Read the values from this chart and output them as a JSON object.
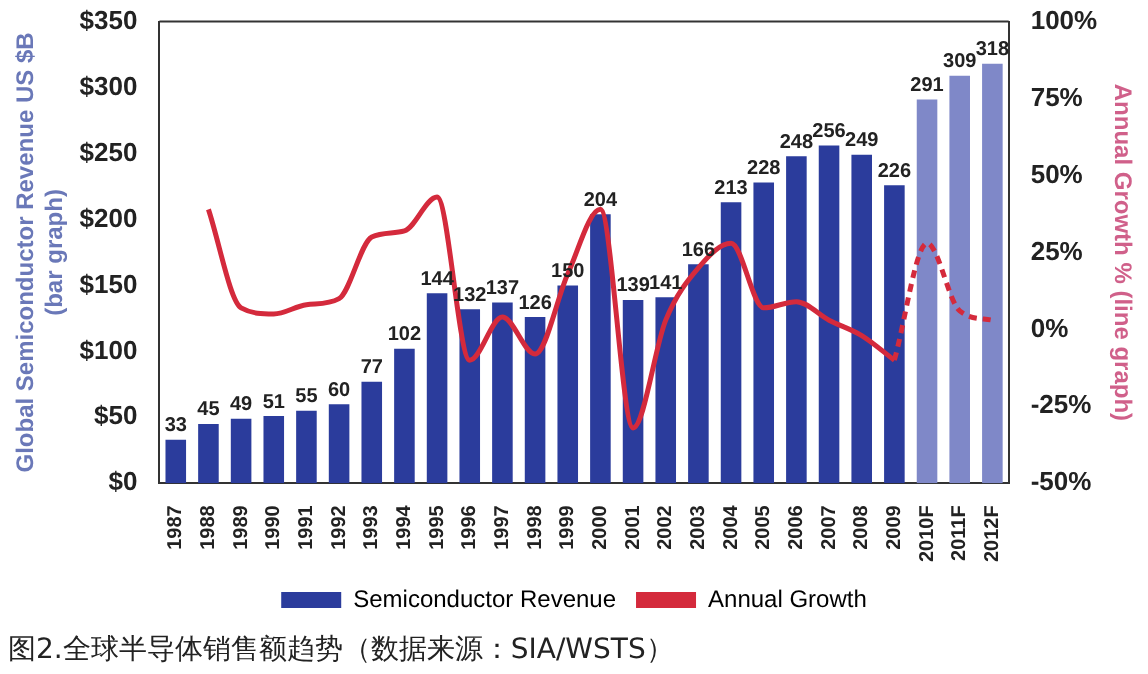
{
  "chart_data": {
    "type": "bar",
    "categories": [
      "1987",
      "1988",
      "1989",
      "1990",
      "1991",
      "1992",
      "1993",
      "1994",
      "1995",
      "1996",
      "1997",
      "1998",
      "1999",
      "2000",
      "2001",
      "2002",
      "2003",
      "2004",
      "2005",
      "2006",
      "2007",
      "2008",
      "2009",
      "2010F",
      "2011F",
      "2012F"
    ],
    "series": [
      {
        "name": "Semiconductor Revenue",
        "color": "#2b3c9c",
        "value_labels": [
          "33",
          "45",
          "49",
          "51",
          "55",
          "60",
          "77",
          "102",
          "144",
          "132",
          "137",
          "126",
          "150",
          "204",
          "139",
          "141",
          "166",
          "213",
          "228",
          "248",
          "256",
          "249",
          "226",
          "291",
          "309",
          "318"
        ],
        "colors": [
          "#2b3c9c",
          "#2b3c9c",
          "#2b3c9c",
          "#2b3c9c",
          "#2b3c9c",
          "#2b3c9c",
          "#2b3c9c",
          "#2b3c9c",
          "#2b3c9c",
          "#2b3c9c",
          "#2b3c9c",
          "#2b3c9c",
          "#2b3c9c",
          "#2b3c9c",
          "#2b3c9c",
          "#2b3c9c",
          "#2b3c9c",
          "#2b3c9c",
          "#2b3c9c",
          "#2b3c9c",
          "#2b3c9c",
          "#2b3c9c",
          "#2b3c9c",
          "#7f88c8",
          "#7f88c8",
          "#7f88c8"
        ],
        "values": [
          33,
          45,
          49,
          51,
          55,
          60,
          77,
          102,
          144,
          132,
          137,
          126,
          150,
          204,
          139,
          141,
          166,
          213,
          228,
          248,
          256,
          249,
          226,
          291,
          309,
          318
        ]
      },
      {
        "name": "Annual Growth",
        "type": "line",
        "axis": "y2",
        "color": "#d42a3c",
        "line_style": "solid",
        "values": [
          null,
          39,
          7,
          5,
          8,
          10,
          30,
          32,
          43,
          -10,
          4,
          -8,
          18,
          39,
          -32,
          3,
          20,
          28,
          7,
          9,
          3,
          -2,
          -10,
          null,
          null,
          null
        ]
      },
      {
        "type": "line",
        "axis": "y2",
        "color": "#d42a3c",
        "line_style": "dashed",
        "values": [
          null,
          null,
          null,
          null,
          null,
          null,
          null,
          null,
          null,
          null,
          null,
          null,
          null,
          null,
          null,
          null,
          null,
          null,
          null,
          null,
          null,
          null,
          -10,
          28,
          6,
          3
        ]
      }
    ],
    "ylabel": "Global Semiconductor Revenue US $B (bar graph)",
    "y2label": "Annual Growth % (line graph)",
    "ylim": [
      0,
      350
    ],
    "yticks": [
      {
        "value": 0,
        "label": "$0"
      },
      {
        "value": 50,
        "label": "$50"
      },
      {
        "value": 100,
        "label": "$100"
      },
      {
        "value": 150,
        "label": "$150"
      },
      {
        "value": 200,
        "label": "$200"
      },
      {
        "value": 250,
        "label": "$250"
      },
      {
        "value": 300,
        "label": "$300"
      },
      {
        "value": 350,
        "label": "$350"
      }
    ],
    "y2lim": [
      -50,
      100
    ],
    "y2ticks": [
      {
        "value": -50,
        "label": "-50%"
      },
      {
        "value": -25,
        "label": "-25%"
      },
      {
        "value": 0,
        "label": "0%"
      },
      {
        "value": 25,
        "label": "25%"
      },
      {
        "value": 50,
        "label": "50%"
      },
      {
        "value": 75,
        "label": "75%"
      },
      {
        "value": 100,
        "label": "100%"
      }
    ],
    "grid": false,
    "legend": "bottom",
    "marker": "none",
    "annotations": [
      "图2.全球半导体销售额趋势（数据来源：SIA/WSTS）"
    ]
  }
}
